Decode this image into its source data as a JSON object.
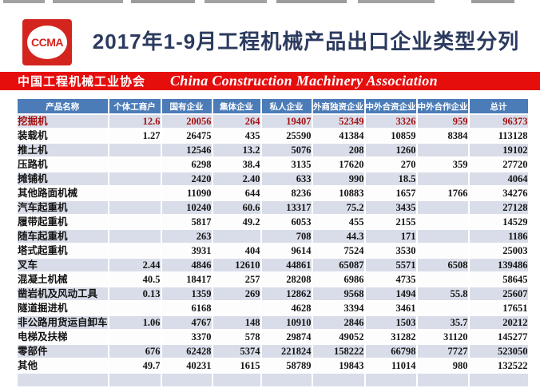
{
  "page": {
    "title": "2017年1-9月工程机械产品出口企业类型分列",
    "logo_text": "CCMA"
  },
  "banner": {
    "org_cn": "中国工程机械工业协会",
    "org_en": "China Construction Machinery Association"
  },
  "colors": {
    "banner-red": "#e60d0d",
    "logo-red": "#d4241e",
    "title-navy": "#2b3a5e",
    "header-blue": "#4b7cb8",
    "row-alt": "#d9dde9",
    "red-text": "#a31212"
  },
  "table": {
    "columns": [
      "产品名称",
      "个体工商户",
      "国有企业",
      "集体企业",
      "私人企业",
      "外商独资企业",
      "中外合资企业",
      "中外合作企业",
      "总计"
    ],
    "rows": [
      {
        "name": "挖掘机",
        "highlight": true,
        "values": [
          "12.6",
          "20056",
          "264",
          "19407",
          "52349",
          "3326",
          "959",
          "96373"
        ]
      },
      {
        "name": "装载机",
        "values": [
          "1.27",
          "26475",
          "435",
          "25590",
          "41384",
          "10859",
          "8384",
          "113128"
        ]
      },
      {
        "name": "推土机",
        "values": [
          "",
          "12546",
          "13.2",
          "5076",
          "208",
          "1260",
          "",
          "19102"
        ]
      },
      {
        "name": "压路机",
        "values": [
          "",
          "6298",
          "38.4",
          "3135",
          "17620",
          "270",
          "359",
          "27720"
        ]
      },
      {
        "name": "摊铺机",
        "values": [
          "",
          "2420",
          "2.40",
          "633",
          "990",
          "18.5",
          "",
          "4064"
        ]
      },
      {
        "name": "其他路面机械",
        "values": [
          "",
          "11090",
          "644",
          "8236",
          "10883",
          "1657",
          "1766",
          "34276"
        ]
      },
      {
        "name": "汽车起重机",
        "values": [
          "",
          "10240",
          "60.6",
          "13317",
          "75.2",
          "3435",
          "",
          "27128"
        ]
      },
      {
        "name": "履带起重机",
        "values": [
          "",
          "5817",
          "49.2",
          "6053",
          "455",
          "2155",
          "",
          "14529"
        ]
      },
      {
        "name": "随车起重机",
        "values": [
          "",
          "263",
          "",
          "708",
          "44.3",
          "171",
          "",
          "1186"
        ]
      },
      {
        "name": "塔式起重机",
        "values": [
          "",
          "3931",
          "404",
          "9614",
          "7524",
          "3530",
          "",
          "25003"
        ]
      },
      {
        "name": "叉车",
        "values": [
          "2.44",
          "4846",
          "12610",
          "44861",
          "65087",
          "5571",
          "6508",
          "139486"
        ]
      },
      {
        "name": "混凝土机械",
        "values": [
          "40.5",
          "18417",
          "257",
          "28208",
          "6986",
          "4735",
          "",
          "58645"
        ]
      },
      {
        "name": "凿岩机及风动工具",
        "values": [
          "0.13",
          "1359",
          "269",
          "12862",
          "9568",
          "1494",
          "55.8",
          "25607"
        ]
      },
      {
        "name": "隧道掘进机",
        "values": [
          "",
          "6168",
          "",
          "4628",
          "3394",
          "3461",
          "",
          "17651"
        ]
      },
      {
        "name": "非公路用货运自卸车",
        "values": [
          "1.06",
          "4767",
          "148",
          "10910",
          "2846",
          "1503",
          "35.7",
          "20212"
        ]
      },
      {
        "name": "电梯及扶梯",
        "values": [
          "",
          "3370",
          "578",
          "29874",
          "49052",
          "31282",
          "31120",
          "145277"
        ]
      },
      {
        "name": "零部件",
        "values": [
          "676",
          "62428",
          "5374",
          "221824",
          "158222",
          "66798",
          "7727",
          "523050"
        ]
      },
      {
        "name": "其他",
        "values": [
          "49.7",
          "40231",
          "1615",
          "58789",
          "19843",
          "11014",
          "980",
          "132522"
        ]
      }
    ]
  }
}
